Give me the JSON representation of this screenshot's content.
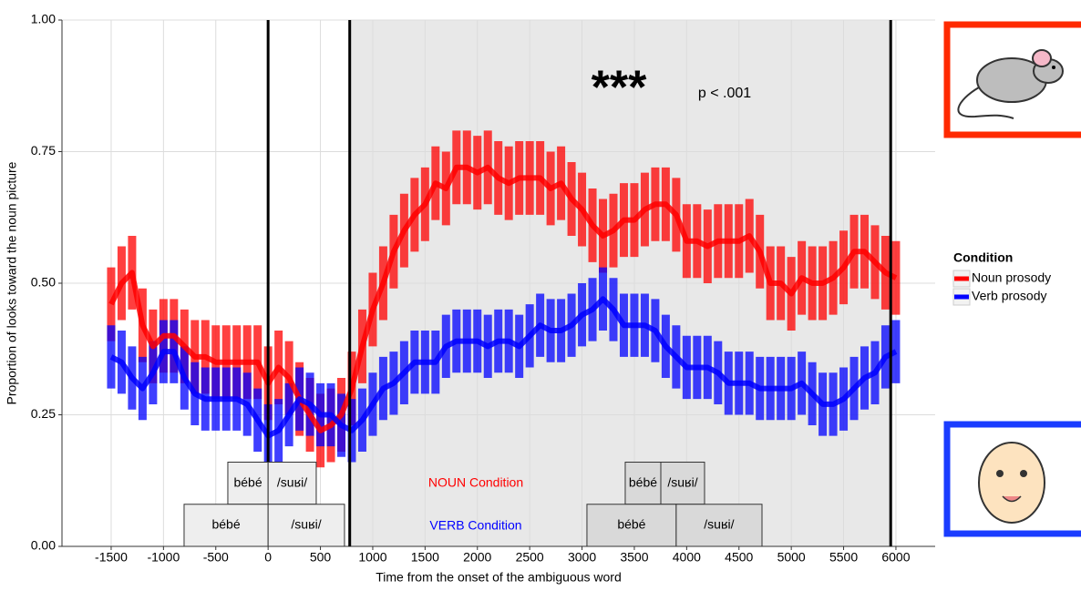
{
  "chart_data": {
    "type": "line",
    "xlabel": "Time from the onset of the ambiguous word",
    "ylabel": "Proportion of looks toward the noun picture",
    "xlim": [
      -1970,
      6375
    ],
    "ylim": [
      0,
      1
    ],
    "xticks": [
      -1500,
      -1000,
      -500,
      0,
      500,
      1000,
      1500,
      2000,
      2500,
      3000,
      3500,
      4000,
      4500,
      5000,
      5500,
      6000
    ],
    "yticks": [
      {
        "value": 0,
        "label": "0.00"
      },
      {
        "value": 0.25,
        "label": "0.25"
      },
      {
        "value": 0.5,
        "label": "0.50"
      },
      {
        "value": 0.75,
        "label": "0.75"
      },
      {
        "value": 1,
        "label": "1.00"
      }
    ],
    "grid": true,
    "legend_title": "Condition",
    "shaded_region": [
      780,
      5950
    ],
    "vlines": [
      0,
      780,
      5950
    ],
    "x": [
      -1500,
      -1400,
      -1300,
      -1200,
      -1100,
      -1000,
      -900,
      -800,
      -700,
      -600,
      -500,
      -400,
      -300,
      -200,
      -100,
      0,
      100,
      200,
      300,
      400,
      500,
      600,
      700,
      800,
      900,
      1000,
      1100,
      1200,
      1300,
      1400,
      1500,
      1600,
      1700,
      1800,
      1900,
      2000,
      2100,
      2200,
      2300,
      2400,
      2500,
      2600,
      2700,
      2800,
      2900,
      3000,
      3100,
      3200,
      3300,
      3400,
      3500,
      3600,
      3700,
      3800,
      3900,
      4000,
      4100,
      4200,
      4300,
      4400,
      4500,
      4600,
      4700,
      4800,
      4900,
      5000,
      5100,
      5200,
      5300,
      5400,
      5500,
      5600,
      5700,
      5800,
      5900,
      6000
    ],
    "series": [
      {
        "name": "Noun prosody",
        "color": "#ff0000",
        "error": 0.07,
        "values": [
          0.46,
          0.5,
          0.52,
          0.42,
          0.38,
          0.4,
          0.4,
          0.38,
          0.36,
          0.36,
          0.35,
          0.35,
          0.35,
          0.35,
          0.35,
          0.31,
          0.34,
          0.32,
          0.28,
          0.25,
          0.22,
          0.23,
          0.25,
          0.3,
          0.38,
          0.45,
          0.5,
          0.56,
          0.6,
          0.63,
          0.65,
          0.69,
          0.68,
          0.72,
          0.72,
          0.71,
          0.72,
          0.7,
          0.69,
          0.7,
          0.7,
          0.7,
          0.68,
          0.69,
          0.66,
          0.64,
          0.61,
          0.59,
          0.6,
          0.62,
          0.62,
          0.64,
          0.65,
          0.65,
          0.63,
          0.58,
          0.58,
          0.57,
          0.58,
          0.58,
          0.58,
          0.59,
          0.56,
          0.5,
          0.5,
          0.48,
          0.51,
          0.5,
          0.5,
          0.51,
          0.53,
          0.56,
          0.56,
          0.54,
          0.52,
          0.51
        ]
      },
      {
        "name": "Verb prosody",
        "color": "#0000ff",
        "error": 0.06,
        "values": [
          0.36,
          0.35,
          0.32,
          0.3,
          0.33,
          0.37,
          0.37,
          0.32,
          0.29,
          0.28,
          0.28,
          0.28,
          0.28,
          0.27,
          0.24,
          0.21,
          0.22,
          0.25,
          0.28,
          0.27,
          0.25,
          0.25,
          0.23,
          0.22,
          0.24,
          0.27,
          0.3,
          0.31,
          0.33,
          0.35,
          0.35,
          0.35,
          0.38,
          0.39,
          0.39,
          0.39,
          0.38,
          0.39,
          0.39,
          0.38,
          0.4,
          0.42,
          0.41,
          0.41,
          0.42,
          0.44,
          0.45,
          0.47,
          0.45,
          0.42,
          0.42,
          0.42,
          0.41,
          0.38,
          0.36,
          0.34,
          0.34,
          0.34,
          0.33,
          0.31,
          0.31,
          0.31,
          0.3,
          0.3,
          0.3,
          0.3,
          0.31,
          0.29,
          0.27,
          0.27,
          0.28,
          0.3,
          0.32,
          0.33,
          0.36,
          0.37
        ]
      }
    ],
    "word_boxes": [
      {
        "label": "bébé",
        "start": -385,
        "end": 0,
        "ylim": [
          0.08,
          0.16
        ],
        "color": "#eeeeee"
      },
      {
        "label": "/suʁi/",
        "start": 0,
        "end": 460,
        "ylim": [
          0.08,
          0.16
        ],
        "color": "#eeeeee"
      },
      {
        "label": "bébé",
        "start": -803,
        "end": 0,
        "ylim": [
          0,
          0.08
        ],
        "color": "#eeeeee"
      },
      {
        "label": "/suʁi/",
        "start": 0,
        "end": 730,
        "ylim": [
          0,
          0.08
        ],
        "color": "#eeeeee"
      },
      {
        "label": "bébé",
        "start": 3413,
        "end": 3753,
        "ylim": [
          0.08,
          0.16
        ],
        "color": "#d9d9d9"
      },
      {
        "label": "/suʁi/",
        "start": 3753,
        "end": 4171,
        "ylim": [
          0.08,
          0.16
        ],
        "color": "#d9d9d9"
      },
      {
        "label": "bébé",
        "start": 3047,
        "end": 3900,
        "ylim": [
          0,
          0.08
        ],
        "color": "#d9d9d9"
      },
      {
        "label": "/suʁi/",
        "start": 3900,
        "end": 4720,
        "ylim": [
          0,
          0.08
        ],
        "color": "#d9d9d9"
      }
    ],
    "annotations": [
      {
        "text": "NOUN Condition",
        "color": "#ff0000"
      },
      {
        "text": "VERB Condition",
        "color": "#0000ff"
      },
      {
        "text": "***",
        "color": "#000000"
      },
      {
        "text": "p < .001",
        "color": "#000000"
      }
    ]
  }
}
